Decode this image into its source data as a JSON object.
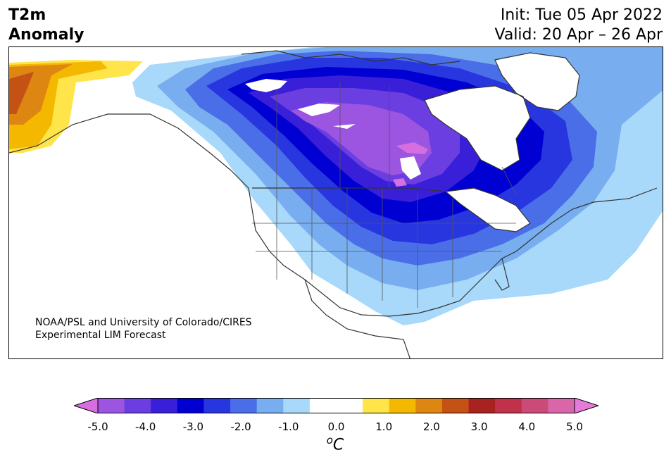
{
  "title": {
    "line1": "T2m",
    "line2": "Anomaly"
  },
  "dates": {
    "init": "Init: Tue 05 Apr 2022",
    "valid": "Valid: 20 Apr – 26 Apr"
  },
  "credit": {
    "line1": "NOAA/PSL and University of Colorado/CIRES",
    "line2": "Experimental LIM Forecast"
  },
  "colorbar": {
    "ticks": [
      "-5.0",
      "-4.0",
      "-3.0",
      "-2.0",
      "-1.0",
      "0.0",
      "1.0",
      "2.0",
      "3.0",
      "4.0",
      "5.0"
    ],
    "unit_base": "C",
    "unit_sup": "o",
    "colors": [
      "#d66ee0",
      "#9b55e0",
      "#6a3ee0",
      "#3a1fd8",
      "#0000d2",
      "#2836e0",
      "#4a6ee8",
      "#78aef0",
      "#a8d8fa",
      "#ffffff",
      "#ffffff",
      "#ffe44a",
      "#f4b800",
      "#dd8612",
      "#c45215",
      "#a8231f",
      "#c0324a",
      "#cc4a78",
      "#d866a8",
      "#e67ad8"
    ]
  }
}
